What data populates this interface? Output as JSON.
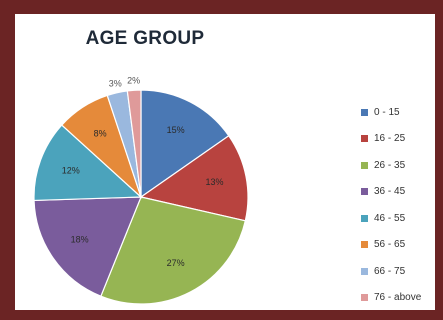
{
  "chart_data": {
    "type": "pie",
    "title": "AGE GROUP",
    "categories": [
      "0 - 15",
      "16 - 25",
      "26 - 35",
      "36 - 45",
      "46 - 55",
      "56 - 65",
      "66 - 75",
      "76 - above"
    ],
    "values": [
      15,
      13,
      27,
      18,
      12,
      8,
      3,
      2
    ],
    "value_labels": [
      "15%",
      "13%",
      "27%",
      "18%",
      "12%",
      "8%",
      "3%",
      "2%"
    ],
    "colors": [
      "#4a78b4",
      "#b8433f",
      "#96b553",
      "#7a5c9c",
      "#4ba3bc",
      "#e58a3a",
      "#9ab8de",
      "#df9a9a"
    ],
    "legend_position": "right"
  }
}
